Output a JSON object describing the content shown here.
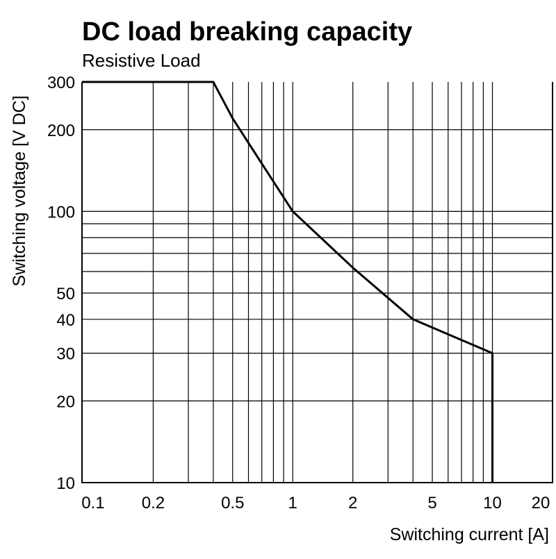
{
  "chart_data": {
    "type": "line",
    "title": "DC load breaking capacity",
    "subtitle": "Resistive Load",
    "x_label": "Switching current [A]",
    "y_label": "Switching voltage [V DC]",
    "x_log": true,
    "y_log": true,
    "grid": true,
    "xlim": [
      0.088,
      20
    ],
    "ylim": [
      10,
      300
    ],
    "xticks": [
      0.1,
      0.2,
      0.5,
      1,
      2,
      5,
      10,
      20
    ],
    "yticks": [
      10,
      20,
      30,
      40,
      50,
      100,
      200,
      300
    ],
    "xgrid": [
      0.2,
      0.3,
      0.4,
      0.5,
      0.6,
      0.7,
      0.8,
      0.9,
      1,
      2,
      3,
      4,
      5,
      6,
      7,
      8,
      9,
      10
    ],
    "ygrid": [
      20,
      30,
      40,
      50,
      60,
      70,
      80,
      90,
      100,
      200
    ],
    "series": [
      {
        "color": "#000000",
        "x": [
          0.088,
          0.4,
          0.5,
          0.7,
          1,
          2,
          4,
          10,
          10
        ],
        "values": [
          300,
          300,
          220,
          150,
          100,
          62,
          40,
          30,
          10
        ]
      }
    ]
  }
}
